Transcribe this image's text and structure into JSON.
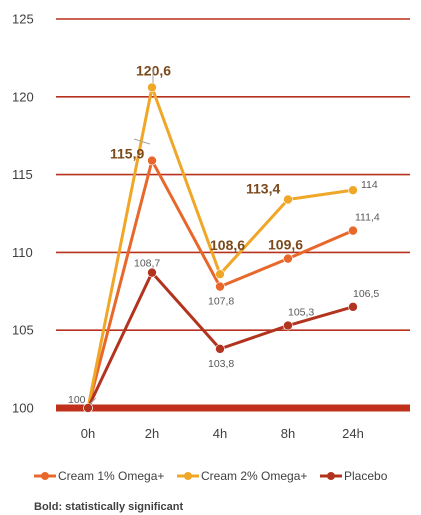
{
  "chart_data": {
    "type": "line",
    "categories": [
      "0h",
      "2h",
      "4h",
      "8h",
      "24h"
    ],
    "ylim": [
      100,
      125
    ],
    "yticks": [
      100,
      105,
      110,
      115,
      120,
      125
    ],
    "ytick_labels": [
      "100",
      "105",
      "110",
      "115",
      "120",
      "125"
    ],
    "grid": true,
    "legend_position": "bottom",
    "series": [
      {
        "name": "Cream 1% Omega+",
        "color": "#e8682c",
        "values": [
          100,
          115.9,
          107.8,
          109.6,
          111.4
        ],
        "labels": [
          "",
          "115,9",
          "107,8",
          "109,6",
          "111,4"
        ],
        "bold": [
          false,
          true,
          false,
          true,
          false
        ]
      },
      {
        "name": "Cream 2% Omega+",
        "color": "#f0a728",
        "values": [
          100,
          120.6,
          108.6,
          113.4,
          114
        ],
        "labels": [
          "100",
          "120,6",
          "108,6",
          "113,4",
          "114"
        ],
        "bold": [
          false,
          true,
          true,
          true,
          false
        ]
      },
      {
        "name": "Placebo",
        "color": "#b3341e",
        "values": [
          100,
          108.7,
          103.8,
          105.3,
          106.5
        ],
        "labels": [
          "",
          "108,7",
          "103,8",
          "105,3",
          "106,5"
        ],
        "bold": [
          false,
          false,
          false,
          false,
          false
        ]
      }
    ],
    "note": "Bold: statistically significant"
  }
}
